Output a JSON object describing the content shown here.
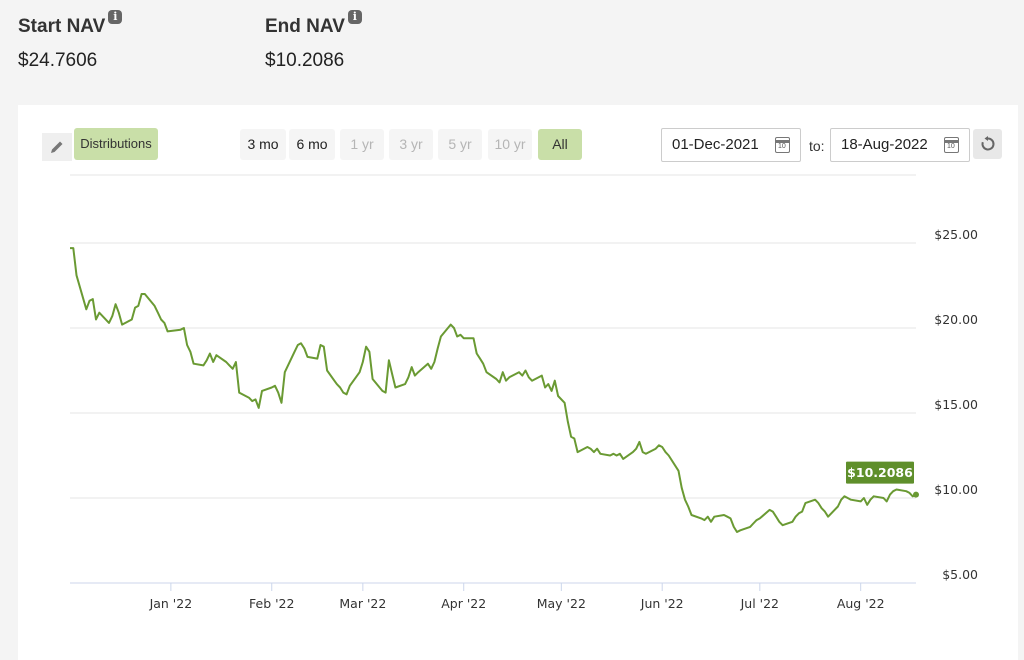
{
  "summary": {
    "start_label": "Start NAV",
    "start_value": "$24.7606",
    "end_label": "End NAV",
    "end_value": "$10.2086",
    "info_icon_glyph": "i"
  },
  "toolbar": {
    "edit_icon": "pencil-icon",
    "distributions_label": "Distributions",
    "ranges": [
      {
        "label": "3 mo",
        "state": "enabled"
      },
      {
        "label": "6 mo",
        "state": "enabled"
      },
      {
        "label": "1 yr",
        "state": "disabled"
      },
      {
        "label": "3 yr",
        "state": "disabled"
      },
      {
        "label": "5 yr",
        "state": "disabled"
      },
      {
        "label": "10 yr",
        "state": "disabled"
      },
      {
        "label": "All",
        "state": "active"
      }
    ],
    "from_date": "01-Dec-2021",
    "to_label": "to:",
    "to_date": "18-Aug-2022",
    "calendar_icon": "calendar-icon",
    "calendar_glyph": "10",
    "reset_icon": "reset-icon"
  },
  "colors": {
    "line": "#6a9a33",
    "tooltip_bg": "#5f8f2b",
    "accent": "#c9dfa8",
    "grid": "#e6e6e6"
  },
  "chart_data": {
    "type": "line",
    "title": "",
    "xlabel": "",
    "ylabel": "",
    "x_start": "2021-12-01",
    "x_end": "2022-08-18",
    "ylim": [
      5,
      29
    ],
    "y_ticks": [
      5,
      10,
      15,
      20,
      25
    ],
    "y_tick_labels": [
      "$5.00",
      "$10.00",
      "$15.00",
      "$20.00",
      "$25.00"
    ],
    "x_ticks": [
      {
        "date": "2022-01-01",
        "label": "Jan '22"
      },
      {
        "date": "2022-02-01",
        "label": "Feb '22"
      },
      {
        "date": "2022-03-01",
        "label": "Mar '22"
      },
      {
        "date": "2022-04-01",
        "label": "Apr '22"
      },
      {
        "date": "2022-05-01",
        "label": "May '22"
      },
      {
        "date": "2022-06-01",
        "label": "Jun '22"
      },
      {
        "date": "2022-07-01",
        "label": "Jul '22"
      },
      {
        "date": "2022-08-01",
        "label": "Aug '22"
      }
    ],
    "grid": true,
    "y_axis_side": "right",
    "last_value_label": "$10.2086",
    "series": [
      {
        "points": [
          [
            "2021-12-01",
            24.7
          ],
          [
            "2021-12-02",
            24.7
          ],
          [
            "2021-12-03",
            23.1
          ],
          [
            "2021-12-06",
            21.1
          ],
          [
            "2021-12-07",
            21.6
          ],
          [
            "2021-12-08",
            21.7
          ],
          [
            "2021-12-09",
            20.5
          ],
          [
            "2021-12-10",
            20.9
          ],
          [
            "2021-12-13",
            20.3
          ],
          [
            "2021-12-14",
            20.7
          ],
          [
            "2021-12-15",
            21.4
          ],
          [
            "2021-12-16",
            20.9
          ],
          [
            "2021-12-17",
            20.2
          ],
          [
            "2021-12-20",
            20.5
          ],
          [
            "2021-12-21",
            21.2
          ],
          [
            "2021-12-22",
            21.3
          ],
          [
            "2021-12-23",
            22.0
          ],
          [
            "2021-12-24",
            22.0
          ],
          [
            "2021-12-27",
            21.3
          ],
          [
            "2021-12-28",
            20.9
          ],
          [
            "2021-12-29",
            20.5
          ],
          [
            "2021-12-30",
            20.3
          ],
          [
            "2021-12-31",
            19.8
          ],
          [
            "2022-01-04",
            19.9
          ],
          [
            "2022-01-05",
            20.0
          ],
          [
            "2022-01-06",
            19.0
          ],
          [
            "2022-01-07",
            18.6
          ],
          [
            "2022-01-08",
            17.9
          ],
          [
            "2022-01-11",
            17.8
          ],
          [
            "2022-01-12",
            18.1
          ],
          [
            "2022-01-13",
            18.5
          ],
          [
            "2022-01-14",
            18.0
          ],
          [
            "2022-01-15",
            18.4
          ],
          [
            "2022-01-18",
            18.0
          ],
          [
            "2022-01-19",
            17.8
          ],
          [
            "2022-01-20",
            17.6
          ],
          [
            "2022-01-21",
            18.0
          ],
          [
            "2022-01-22",
            16.2
          ],
          [
            "2022-01-25",
            15.9
          ],
          [
            "2022-01-26",
            15.7
          ],
          [
            "2022-01-27",
            15.8
          ],
          [
            "2022-01-28",
            15.3
          ],
          [
            "2022-01-29",
            16.3
          ],
          [
            "2022-02-01",
            16.5
          ],
          [
            "2022-02-02",
            16.6
          ],
          [
            "2022-02-03",
            16.2
          ],
          [
            "2022-02-04",
            15.6
          ],
          [
            "2022-02-05",
            17.4
          ],
          [
            "2022-02-08",
            18.6
          ],
          [
            "2022-02-09",
            19.0
          ],
          [
            "2022-02-10",
            19.1
          ],
          [
            "2022-02-11",
            18.8
          ],
          [
            "2022-02-12",
            18.3
          ],
          [
            "2022-02-15",
            18.2
          ],
          [
            "2022-02-16",
            19.0
          ],
          [
            "2022-02-17",
            18.9
          ],
          [
            "2022-02-18",
            17.5
          ],
          [
            "2022-02-21",
            16.7
          ],
          [
            "2022-02-22",
            16.5
          ],
          [
            "2022-02-23",
            16.2
          ],
          [
            "2022-02-24",
            16.1
          ],
          [
            "2022-02-25",
            16.6
          ],
          [
            "2022-02-28",
            17.4
          ],
          [
            "2022-03-01",
            18.0
          ],
          [
            "2022-03-02",
            18.9
          ],
          [
            "2022-03-03",
            18.6
          ],
          [
            "2022-03-04",
            17.0
          ],
          [
            "2022-03-07",
            16.3
          ],
          [
            "2022-03-08",
            16.2
          ],
          [
            "2022-03-09",
            18.1
          ],
          [
            "2022-03-10",
            17.3
          ],
          [
            "2022-03-11",
            16.5
          ],
          [
            "2022-03-14",
            16.7
          ],
          [
            "2022-03-15",
            17.1
          ],
          [
            "2022-03-16",
            17.7
          ],
          [
            "2022-03-17",
            17.2
          ],
          [
            "2022-03-18",
            17.4
          ],
          [
            "2022-03-21",
            17.9
          ],
          [
            "2022-03-22",
            17.6
          ],
          [
            "2022-03-23",
            18.0
          ],
          [
            "2022-03-24",
            18.8
          ],
          [
            "2022-03-25",
            19.5
          ],
          [
            "2022-03-28",
            20.2
          ],
          [
            "2022-03-29",
            20.0
          ],
          [
            "2022-03-30",
            19.5
          ],
          [
            "2022-03-31",
            19.6
          ],
          [
            "2022-04-01",
            19.4
          ],
          [
            "2022-04-04",
            19.4
          ],
          [
            "2022-04-05",
            18.5
          ],
          [
            "2022-04-06",
            18.2
          ],
          [
            "2022-04-07",
            17.9
          ],
          [
            "2022-04-08",
            17.4
          ],
          [
            "2022-04-11",
            17.0
          ],
          [
            "2022-04-12",
            16.8
          ],
          [
            "2022-04-13",
            17.4
          ],
          [
            "2022-04-14",
            16.9
          ],
          [
            "2022-04-15",
            17.1
          ],
          [
            "2022-04-18",
            17.4
          ],
          [
            "2022-04-19",
            17.2
          ],
          [
            "2022-04-20",
            17.5
          ],
          [
            "2022-04-21",
            17.1
          ],
          [
            "2022-04-22",
            16.9
          ],
          [
            "2022-04-25",
            17.2
          ],
          [
            "2022-04-26",
            16.5
          ],
          [
            "2022-04-27",
            16.7
          ],
          [
            "2022-04-28",
            16.3
          ],
          [
            "2022-04-29",
            16.9
          ],
          [
            "2022-04-30",
            16.0
          ],
          [
            "2022-05-02",
            15.6
          ],
          [
            "2022-05-03",
            14.5
          ],
          [
            "2022-05-04",
            13.6
          ],
          [
            "2022-05-05",
            13.5
          ],
          [
            "2022-05-06",
            12.7
          ],
          [
            "2022-05-09",
            13.0
          ],
          [
            "2022-05-10",
            12.9
          ],
          [
            "2022-05-11",
            12.7
          ],
          [
            "2022-05-12",
            12.9
          ],
          [
            "2022-05-13",
            12.6
          ],
          [
            "2022-05-16",
            12.5
          ],
          [
            "2022-05-17",
            12.6
          ],
          [
            "2022-05-18",
            12.5
          ],
          [
            "2022-05-19",
            12.6
          ],
          [
            "2022-05-20",
            12.3
          ],
          [
            "2022-05-23",
            12.7
          ],
          [
            "2022-05-24",
            12.9
          ],
          [
            "2022-05-25",
            13.3
          ],
          [
            "2022-05-26",
            12.7
          ],
          [
            "2022-05-27",
            12.6
          ],
          [
            "2022-05-30",
            12.9
          ],
          [
            "2022-05-31",
            13.1
          ],
          [
            "2022-06-01",
            13.0
          ],
          [
            "2022-06-02",
            12.7
          ],
          [
            "2022-06-03",
            12.5
          ],
          [
            "2022-06-06",
            11.6
          ],
          [
            "2022-06-07",
            10.6
          ],
          [
            "2022-06-08",
            9.9
          ],
          [
            "2022-06-09",
            9.5
          ],
          [
            "2022-06-10",
            9.0
          ],
          [
            "2022-06-13",
            8.8
          ],
          [
            "2022-06-14",
            8.7
          ],
          [
            "2022-06-15",
            8.9
          ],
          [
            "2022-06-16",
            8.6
          ],
          [
            "2022-06-17",
            8.9
          ],
          [
            "2022-06-20",
            9.0
          ],
          [
            "2022-06-21",
            8.9
          ],
          [
            "2022-06-22",
            8.8
          ],
          [
            "2022-06-23",
            8.3
          ],
          [
            "2022-06-24",
            8.0
          ],
          [
            "2022-06-25",
            8.1
          ],
          [
            "2022-06-28",
            8.3
          ],
          [
            "2022-06-29",
            8.5
          ],
          [
            "2022-06-30",
            8.7
          ],
          [
            "2022-07-01",
            8.8
          ],
          [
            "2022-07-04",
            9.3
          ],
          [
            "2022-07-05",
            9.2
          ],
          [
            "2022-07-06",
            8.9
          ],
          [
            "2022-07-07",
            8.6
          ],
          [
            "2022-07-08",
            8.4
          ],
          [
            "2022-07-11",
            8.6
          ],
          [
            "2022-07-12",
            8.9
          ],
          [
            "2022-07-13",
            9.1
          ],
          [
            "2022-07-14",
            9.2
          ],
          [
            "2022-07-15",
            9.7
          ],
          [
            "2022-07-18",
            9.9
          ],
          [
            "2022-07-19",
            9.7
          ],
          [
            "2022-07-20",
            9.4
          ],
          [
            "2022-07-21",
            9.2
          ],
          [
            "2022-07-22",
            8.9
          ],
          [
            "2022-07-25",
            9.5
          ],
          [
            "2022-07-26",
            9.9
          ],
          [
            "2022-07-27",
            10.1
          ],
          [
            "2022-07-28",
            10.0
          ],
          [
            "2022-07-29",
            9.9
          ],
          [
            "2022-08-01",
            9.8
          ],
          [
            "2022-08-02",
            10.0
          ],
          [
            "2022-08-03",
            9.6
          ],
          [
            "2022-08-04",
            9.9
          ],
          [
            "2022-08-05",
            10.1
          ],
          [
            "2022-08-08",
            10.0
          ],
          [
            "2022-08-09",
            9.8
          ],
          [
            "2022-08-10",
            10.2
          ],
          [
            "2022-08-11",
            10.4
          ],
          [
            "2022-08-12",
            10.5
          ],
          [
            "2022-08-15",
            10.4
          ],
          [
            "2022-08-16",
            10.3
          ],
          [
            "2022-08-17",
            10.1
          ],
          [
            "2022-08-18",
            10.2
          ]
        ]
      }
    ]
  }
}
